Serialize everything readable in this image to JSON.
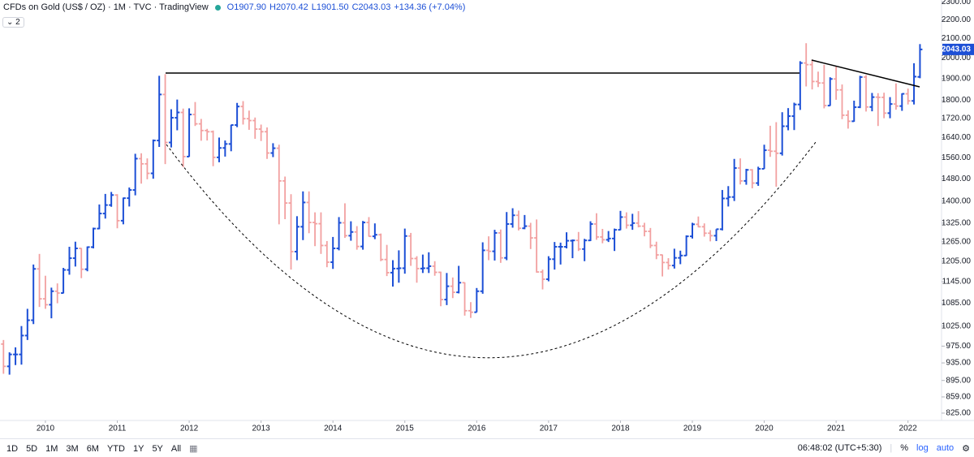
{
  "chart_data": {
    "type": "ohlc",
    "title": "CFDs on Gold (US$ / OZ) · 1M · TVC · TradingView",
    "indicator_count": "2",
    "legend_values": [
      {
        "prefix": "O",
        "label": "1907.90"
      },
      {
        "prefix": "H",
        "label": "2070.42"
      },
      {
        "prefix": "L",
        "label": "1901.50"
      },
      {
        "prefix": "C",
        "label": "2043.03"
      }
    ],
    "change_label": "+134.36 (+7.04%)",
    "log_scale": true,
    "grid": false,
    "up_color": "#1c4fd6",
    "down_color": "#f2a0a0",
    "ylim": [
      810,
      2311
    ],
    "yticks": [
      {
        "value": 2300,
        "label": "2300.00"
      },
      {
        "value": 2200,
        "label": "2200.00"
      },
      {
        "value": 2100,
        "label": "2100.00"
      },
      {
        "value": 2000,
        "label": "2000.00"
      },
      {
        "value": 1900,
        "label": "1900.00"
      },
      {
        "value": 1800,
        "label": "1800.00"
      },
      {
        "value": 1720,
        "label": "1720.00"
      },
      {
        "value": 1640,
        "label": "1640.00"
      },
      {
        "value": 1560,
        "label": "1560.00"
      },
      {
        "value": 1480,
        "label": "1480.00"
      },
      {
        "value": 1400,
        "label": "1400.00"
      },
      {
        "value": 1325,
        "label": "1325.00"
      },
      {
        "value": 1265,
        "label": "1265.00"
      },
      {
        "value": 1205,
        "label": "1205.00"
      },
      {
        "value": 1145,
        "label": "1145.00"
      },
      {
        "value": 1085,
        "label": "1085.00"
      },
      {
        "value": 1025,
        "label": "1025.00"
      },
      {
        "value": 975,
        "label": "975.00"
      },
      {
        "value": 935,
        "label": "935.00"
      },
      {
        "value": 895,
        "label": "895.00"
      },
      {
        "value": 859,
        "label": "859.00"
      },
      {
        "value": 825,
        "label": "825.00"
      }
    ],
    "categories": [
      null,
      null,
      null,
      null,
      null,
      null,
      null,
      "2010",
      null,
      null,
      null,
      null,
      null,
      null,
      null,
      null,
      null,
      null,
      null,
      "2011",
      null,
      null,
      null,
      null,
      null,
      null,
      null,
      null,
      null,
      null,
      null,
      "2012",
      null,
      null,
      null,
      null,
      null,
      null,
      null,
      null,
      null,
      null,
      null,
      "2013",
      null,
      null,
      null,
      null,
      null,
      null,
      null,
      null,
      null,
      null,
      null,
      "2014",
      null,
      null,
      null,
      null,
      null,
      null,
      null,
      null,
      null,
      null,
      null,
      "2015",
      null,
      null,
      null,
      null,
      null,
      null,
      null,
      null,
      null,
      null,
      null,
      "2016",
      null,
      null,
      null,
      null,
      null,
      null,
      null,
      null,
      null,
      null,
      null,
      "2017",
      null,
      null,
      null,
      null,
      null,
      null,
      null,
      null,
      null,
      null,
      null,
      "2018",
      null,
      null,
      null,
      null,
      null,
      null,
      null,
      null,
      null,
      null,
      null,
      "2019",
      null,
      null,
      null,
      null,
      null,
      null,
      null,
      null,
      null,
      null,
      null,
      "2020",
      null,
      null,
      null,
      null,
      null,
      null,
      null,
      null,
      null,
      null,
      null,
      "2021",
      null,
      null,
      null,
      null,
      null,
      null,
      null,
      null,
      null,
      null,
      null,
      "2022",
      null,
      null
    ],
    "open": [
      980,
      927,
      955,
      955,
      1001,
      1040,
      1182,
      1097,
      1081,
      1118,
      1113,
      1179,
      1214,
      1244,
      1181,
      1248,
      1307,
      1357,
      1386,
      1421,
      1333,
      1410,
      1439,
      1556,
      1536,
      1500,
      1628,
      1826,
      1620,
      1723,
      1746,
      1564,
      1737,
      1697,
      1669,
      1664,
      1561,
      1598,
      1614,
      1692,
      1772,
      1719,
      1711,
      1675,
      1664,
      1578,
      1597,
      1472,
      1393,
      1234,
      1313,
      1395,
      1327,
      1323,
      1253,
      1202,
      1244,
      1326,
      1284,
      1296,
      1250,
      1327,
      1282,
      1287,
      1210,
      1171,
      1183,
      1184,
      1283,
      1213,
      1183,
      1184,
      1190,
      1172,
      1095,
      1132,
      1115,
      1142,
      1065,
      1061,
      1118,
      1238,
      1235,
      1293,
      1215,
      1322,
      1351,
      1308,
      1315,
      1277,
      1173,
      1152,
      1211,
      1249,
      1249,
      1268,
      1269,
      1242,
      1269,
      1322,
      1280,
      1271,
      1275,
      1303,
      1345,
      1318,
      1325,
      1315,
      1298,
      1253,
      1224,
      1201,
      1192,
      1215,
      1222,
      1282,
      1321,
      1313,
      1292,
      1284,
      1305,
      1409,
      1414,
      1520,
      1472,
      1513,
      1464,
      1517,
      1589,
      1585,
      1577,
      1687,
      1730,
      1781,
      1975,
      1967,
      1886,
      1879,
      1776,
      1898,
      1847,
      1734,
      1708,
      1769,
      1907,
      1770,
      1814,
      1813,
      1743,
      1783,
      1774,
      1829,
      1797,
      1907.9
    ],
    "high": [
      990,
      960,
      972,
      1025,
      1070,
      1195,
      1227,
      1162,
      1128,
      1140,
      1185,
      1249,
      1265,
      1245,
      1250,
      1310,
      1388,
      1425,
      1432,
      1424,
      1412,
      1448,
      1575,
      1577,
      1557,
      1632,
      1913,
      1921,
      1760,
      1803,
      1763,
      1764,
      1792,
      1718,
      1676,
      1669,
      1640,
      1628,
      1693,
      1788,
      1796,
      1754,
      1724,
      1694,
      1682,
      1617,
      1611,
      1488,
      1424,
      1348,
      1434,
      1434,
      1361,
      1361,
      1267,
      1280,
      1345,
      1392,
      1331,
      1315,
      1332,
      1345,
      1324,
      1291,
      1255,
      1208,
      1238,
      1307,
      1293,
      1220,
      1225,
      1232,
      1205,
      1174,
      1170,
      1157,
      1191,
      1143,
      1088,
      1127,
      1263,
      1282,
      1303,
      1304,
      1362,
      1375,
      1367,
      1352,
      1326,
      1337,
      1180,
      1220,
      1264,
      1262,
      1295,
      1272,
      1296,
      1274,
      1331,
      1358,
      1306,
      1299,
      1307,
      1366,
      1361,
      1356,
      1365,
      1326,
      1309,
      1265,
      1225,
      1214,
      1243,
      1237,
      1285,
      1326,
      1347,
      1324,
      1302,
      1305,
      1439,
      1453,
      1555,
      1557,
      1517,
      1516,
      1525,
      1611,
      1689,
      1704,
      1747,
      1765,
      1789,
      1984,
      2075,
      1992,
      1933,
      1966,
      1906,
      1959,
      1872,
      1755,
      1798,
      1913,
      1916,
      1833,
      1832,
      1834,
      1814,
      1877,
      1831,
      1853,
      1974,
      2070.42
    ],
    "low": [
      910,
      908,
      930,
      931,
      990,
      1030,
      1075,
      1070,
      1045,
      1085,
      1112,
      1165,
      1189,
      1155,
      1175,
      1244,
      1305,
      1340,
      1380,
      1308,
      1321,
      1381,
      1420,
      1462,
      1478,
      1480,
      1602,
      1535,
      1600,
      1670,
      1523,
      1563,
      1688,
      1627,
      1628,
      1527,
      1542,
      1564,
      1585,
      1683,
      1694,
      1672,
      1635,
      1626,
      1555,
      1562,
      1321,
      1338,
      1180,
      1208,
      1270,
      1292,
      1251,
      1227,
      1187,
      1182,
      1238,
      1277,
      1268,
      1240,
      1240,
      1281,
      1273,
      1205,
      1161,
      1131,
      1142,
      1168,
      1191,
      1142,
      1170,
      1170,
      1162,
      1077,
      1080,
      1099,
      1112,
      1052,
      1046,
      1061,
      1111,
      1208,
      1207,
      1200,
      1208,
      1310,
      1301,
      1305,
      1242,
      1171,
      1123,
      1146,
      1180,
      1195,
      1244,
      1214,
      1236,
      1205,
      1267,
      1271,
      1260,
      1264,
      1236,
      1302,
      1307,
      1303,
      1311,
      1282,
      1245,
      1211,
      1160,
      1180,
      1183,
      1196,
      1221,
      1275,
      1311,
      1281,
      1266,
      1267,
      1301,
      1381,
      1400,
      1459,
      1458,
      1445,
      1454,
      1517,
      1563,
      1451,
      1568,
      1670,
      1671,
      1757,
      1863,
      1849,
      1860,
      1764,
      1775,
      1802,
      1717,
      1677,
      1706,
      1765,
      1750,
      1751,
      1688,
      1721,
      1721,
      1758,
      1753,
      1781,
      1781,
      1901.5
    ],
    "close": [
      927,
      955,
      955,
      1001,
      1040,
      1182,
      1097,
      1081,
      1118,
      1113,
      1179,
      1214,
      1244,
      1181,
      1248,
      1307,
      1357,
      1386,
      1421,
      1333,
      1410,
      1439,
      1556,
      1536,
      1500,
      1628,
      1826,
      1620,
      1723,
      1746,
      1564,
      1737,
      1697,
      1669,
      1664,
      1561,
      1598,
      1614,
      1692,
      1772,
      1719,
      1711,
      1675,
      1664,
      1578,
      1597,
      1472,
      1393,
      1234,
      1313,
      1395,
      1327,
      1323,
      1253,
      1202,
      1244,
      1326,
      1284,
      1296,
      1250,
      1327,
      1282,
      1287,
      1210,
      1171,
      1183,
      1184,
      1283,
      1213,
      1183,
      1184,
      1190,
      1172,
      1095,
      1132,
      1115,
      1142,
      1065,
      1061,
      1118,
      1238,
      1235,
      1293,
      1215,
      1322,
      1351,
      1308,
      1315,
      1277,
      1173,
      1152,
      1211,
      1249,
      1249,
      1268,
      1269,
      1242,
      1269,
      1322,
      1280,
      1271,
      1275,
      1303,
      1345,
      1318,
      1325,
      1315,
      1298,
      1253,
      1224,
      1201,
      1192,
      1215,
      1222,
      1282,
      1321,
      1313,
      1292,
      1284,
      1305,
      1409,
      1414,
      1520,
      1472,
      1513,
      1464,
      1517,
      1589,
      1585,
      1577,
      1687,
      1730,
      1781,
      1975,
      1967,
      1886,
      1879,
      1776,
      1898,
      1847,
      1734,
      1708,
      1769,
      1907,
      1770,
      1814,
      1813,
      1743,
      1783,
      1774,
      1829,
      1797,
      1909,
      2043.03
    ]
  },
  "toolbar": {
    "ranges": [
      "1D",
      "5D",
      "1M",
      "3M",
      "6M",
      "YTD",
      "1Y",
      "5Y",
      "All"
    ],
    "time": "06:48:02 (UTC+5:30)",
    "percent": "%",
    "log": "log",
    "auto": "auto"
  }
}
